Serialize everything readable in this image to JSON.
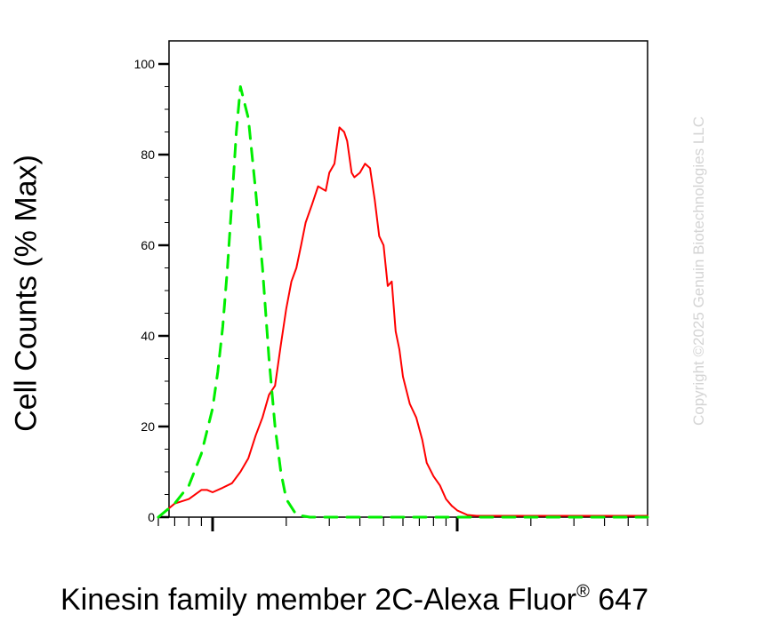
{
  "chart_data": {
    "type": "line",
    "xlabel_main": "Kinesin family member 2C-Alexa Fluor",
    "xlabel_sup": "®",
    "xlabel_tail": " 647",
    "ylabel": "Cell Counts (% Max)",
    "watermark": "Copyright ©2025 Genuin Biotechnologies LLC",
    "x_scale": "log",
    "xlim": [
      60,
      6000
    ],
    "ylim": [
      0,
      100
    ],
    "y_ticks": [
      0,
      20,
      40,
      60,
      80,
      100
    ],
    "y_tick_labels": [
      "0",
      "20",
      "40",
      "60",
      "80",
      "100"
    ],
    "grid": false,
    "legend": "none",
    "series": [
      {
        "color": "#ff0000",
        "style": "solid",
        "x": [
          60,
          70,
          75,
          80,
          90,
          95,
          100,
          110,
          120,
          130,
          140,
          150,
          160,
          170,
          180,
          190,
          200,
          210,
          220,
          230,
          240,
          255,
          270,
          290,
          300,
          315,
          330,
          345,
          355,
          370,
          380,
          400,
          420,
          440,
          460,
          480,
          500,
          520,
          540,
          560,
          580,
          600,
          640,
          680,
          720,
          750,
          800,
          850,
          900,
          950,
          1000,
          1100,
          1200,
          1300,
          1500,
          1700,
          1900,
          2100,
          2500,
          3000,
          6000
        ],
        "y": [
          0,
          3,
          3.5,
          4,
          6,
          6,
          5.5,
          6.5,
          7.5,
          10,
          13,
          18,
          22,
          27,
          29,
          38,
          46,
          52,
          55,
          60,
          65,
          69,
          73,
          72,
          76,
          78,
          86,
          85,
          83,
          76,
          75,
          76,
          78,
          77,
          70,
          62,
          60,
          51,
          52,
          41,
          37,
          31,
          25,
          22,
          17,
          12,
          9,
          7,
          4,
          2.5,
          1.5,
          0.5,
          0.3,
          0.3,
          0.3,
          0.3,
          0.3,
          0.3,
          0.3,
          0.3,
          0.3
        ]
      },
      {
        "color": "#00ee00",
        "style": "dashed",
        "x": [
          60,
          70,
          80,
          90,
          100,
          105,
          110,
          115,
          120,
          125,
          130,
          140,
          150,
          160,
          170,
          180,
          190,
          200,
          220,
          250,
          300,
          350,
          400,
          450,
          500,
          600,
          700,
          800,
          1000,
          1500,
          3000,
          6000
        ],
        "y": [
          0,
          3,
          7,
          14,
          24,
          32,
          42,
          55,
          70,
          85,
          95,
          88,
          72,
          55,
          35,
          20,
          10,
          4,
          0.5,
          0,
          0,
          0,
          0,
          0,
          0,
          0,
          0,
          0,
          0,
          0,
          0,
          0
        ]
      }
    ]
  }
}
